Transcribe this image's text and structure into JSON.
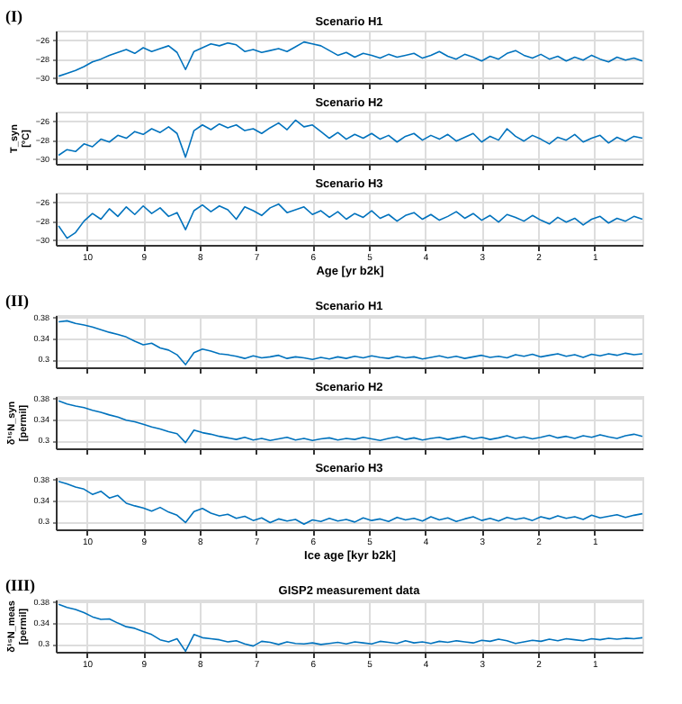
{
  "chart_data": [
    {
      "type": "line",
      "title": "Scenario H1",
      "annotations": [
        "(I)"
      ],
      "xlim": [
        10.55,
        0.15
      ],
      "xticks": [
        10,
        9,
        8,
        7,
        6,
        5,
        4,
        3,
        2,
        1
      ],
      "ylim": [
        -30.5,
        -25
      ],
      "yticks": [
        -26,
        -28,
        -30
      ],
      "grid": true,
      "tick_labels": "y",
      "x": [
        10.5,
        10.35,
        10.2,
        10.05,
        9.9,
        9.75,
        9.6,
        9.45,
        9.3,
        9.15,
        9.0,
        8.85,
        8.7,
        8.55,
        8.4,
        8.25,
        8.1,
        7.95,
        7.8,
        7.65,
        7.5,
        7.35,
        7.2,
        7.05,
        6.9,
        6.75,
        6.6,
        6.45,
        6.3,
        6.15,
        6.0,
        5.85,
        5.7,
        5.55,
        5.4,
        5.25,
        5.1,
        4.95,
        4.8,
        4.65,
        4.5,
        4.35,
        4.2,
        4.05,
        3.9,
        3.75,
        3.6,
        3.45,
        3.3,
        3.15,
        3.0,
        2.85,
        2.7,
        2.55,
        2.4,
        2.25,
        2.1,
        1.95,
        1.8,
        1.65,
        1.5,
        1.35,
        1.2,
        1.05,
        0.9,
        0.75,
        0.6,
        0.45,
        0.3,
        0.15
      ],
      "series": [
        {
          "color": "#0072bd",
          "values": [
            -29.8,
            -29.5,
            -29.2,
            -28.8,
            -28.3,
            -28.0,
            -27.6,
            -27.3,
            -27.0,
            -27.4,
            -26.8,
            -27.2,
            -26.9,
            -26.6,
            -27.3,
            -29.1,
            -27.2,
            -26.8,
            -26.4,
            -26.6,
            -26.3,
            -26.5,
            -27.2,
            -27.0,
            -27.3,
            -27.1,
            -26.9,
            -27.2,
            -26.7,
            -26.2,
            -26.4,
            -26.6,
            -27.1,
            -27.6,
            -27.3,
            -27.8,
            -27.4,
            -27.6,
            -27.9,
            -27.5,
            -27.8,
            -27.6,
            -27.4,
            -27.9,
            -27.6,
            -27.2,
            -27.7,
            -28.0,
            -27.5,
            -27.8,
            -28.2,
            -27.7,
            -28.0,
            -27.4,
            -27.1,
            -27.6,
            -27.9,
            -27.5,
            -28.0,
            -27.7,
            -28.2,
            -27.8,
            -28.1,
            -27.6,
            -28.0,
            -28.3,
            -27.8,
            -28.1,
            -27.9,
            -28.2
          ]
        }
      ]
    },
    {
      "type": "line",
      "title": "Scenario H2",
      "ylabel": "T_syn [°C]",
      "xlim": [
        10.55,
        0.15
      ],
      "xticks": [
        10,
        9,
        8,
        7,
        6,
        5,
        4,
        3,
        2,
        1
      ],
      "ylim": [
        -30.5,
        -25
      ],
      "yticks": [
        -26,
        -28,
        -30
      ],
      "grid": true,
      "tick_labels": "y",
      "x": [
        10.5,
        10.35,
        10.2,
        10.05,
        9.9,
        9.75,
        9.6,
        9.45,
        9.3,
        9.15,
        9.0,
        8.85,
        8.7,
        8.55,
        8.4,
        8.25,
        8.1,
        7.95,
        7.8,
        7.65,
        7.5,
        7.35,
        7.2,
        7.05,
        6.9,
        6.75,
        6.6,
        6.45,
        6.3,
        6.15,
        6.0,
        5.85,
        5.7,
        5.55,
        5.4,
        5.25,
        5.1,
        4.95,
        4.8,
        4.65,
        4.5,
        4.35,
        4.2,
        4.05,
        3.9,
        3.75,
        3.6,
        3.45,
        3.3,
        3.15,
        3.0,
        2.85,
        2.7,
        2.55,
        2.4,
        2.25,
        2.1,
        1.95,
        1.8,
        1.65,
        1.5,
        1.35,
        1.2,
        1.05,
        0.9,
        0.75,
        0.6,
        0.45,
        0.3,
        0.15
      ],
      "series": [
        {
          "color": "#0072bd",
          "values": [
            -29.6,
            -29.0,
            -29.2,
            -28.4,
            -28.7,
            -27.9,
            -28.2,
            -27.5,
            -27.8,
            -27.1,
            -27.4,
            -26.8,
            -27.2,
            -26.6,
            -27.3,
            -29.8,
            -27.0,
            -26.4,
            -26.9,
            -26.3,
            -26.7,
            -26.4,
            -27.0,
            -26.8,
            -27.3,
            -26.7,
            -26.2,
            -26.9,
            -25.9,
            -26.6,
            -26.4,
            -27.1,
            -27.8,
            -27.2,
            -27.9,
            -27.4,
            -27.8,
            -27.3,
            -27.9,
            -27.5,
            -28.2,
            -27.6,
            -27.3,
            -28.0,
            -27.5,
            -27.9,
            -27.4,
            -28.1,
            -27.7,
            -27.3,
            -28.2,
            -27.6,
            -28.0,
            -26.8,
            -27.6,
            -28.1,
            -27.5,
            -27.9,
            -28.4,
            -27.7,
            -28.0,
            -27.4,
            -28.2,
            -27.8,
            -27.5,
            -28.3,
            -27.7,
            -28.1,
            -27.6,
            -27.8
          ]
        }
      ]
    },
    {
      "type": "line",
      "title": "Scenario H3",
      "xlabel": "Age [yr b2k]",
      "xlim": [
        10.55,
        0.15
      ],
      "xticks": [
        10,
        9,
        8,
        7,
        6,
        5,
        4,
        3,
        2,
        1
      ],
      "ylim": [
        -30.5,
        -25
      ],
      "yticks": [
        -26,
        -28,
        -30
      ],
      "grid": true,
      "x": [
        10.5,
        10.35,
        10.2,
        10.05,
        9.9,
        9.75,
        9.6,
        9.45,
        9.3,
        9.15,
        9.0,
        8.85,
        8.7,
        8.55,
        8.4,
        8.25,
        8.1,
        7.95,
        7.8,
        7.65,
        7.5,
        7.35,
        7.2,
        7.05,
        6.9,
        6.75,
        6.6,
        6.45,
        6.3,
        6.15,
        6.0,
        5.85,
        5.7,
        5.55,
        5.4,
        5.25,
        5.1,
        4.95,
        4.8,
        4.65,
        4.5,
        4.35,
        4.2,
        4.05,
        3.9,
        3.75,
        3.6,
        3.45,
        3.3,
        3.15,
        3.0,
        2.85,
        2.7,
        2.55,
        2.4,
        2.25,
        2.1,
        1.95,
        1.8,
        1.65,
        1.5,
        1.35,
        1.2,
        1.05,
        0.9,
        0.75,
        0.6,
        0.45,
        0.3,
        0.15
      ],
      "series": [
        {
          "color": "#0072bd",
          "values": [
            -28.5,
            -29.8,
            -29.2,
            -28.0,
            -27.2,
            -27.8,
            -26.7,
            -27.5,
            -26.5,
            -27.3,
            -26.4,
            -27.2,
            -26.6,
            -27.5,
            -27.1,
            -28.9,
            -26.9,
            -26.3,
            -27.0,
            -26.4,
            -26.8,
            -27.8,
            -26.5,
            -26.9,
            -27.4,
            -26.6,
            -26.2,
            -27.1,
            -26.8,
            -26.5,
            -27.3,
            -26.9,
            -27.6,
            -27.0,
            -27.8,
            -27.2,
            -27.6,
            -26.9,
            -27.7,
            -27.3,
            -28.0,
            -27.4,
            -27.1,
            -27.8,
            -27.3,
            -27.9,
            -27.5,
            -27.0,
            -27.7,
            -27.2,
            -27.9,
            -27.4,
            -28.1,
            -27.3,
            -27.6,
            -28.0,
            -27.4,
            -27.9,
            -28.3,
            -27.6,
            -28.1,
            -27.7,
            -28.4,
            -27.8,
            -27.5,
            -28.2,
            -27.7,
            -28.0,
            -27.5,
            -27.8
          ]
        }
      ]
    },
    {
      "type": "line",
      "title": "Scenario H1",
      "annotations": [
        "(II)"
      ],
      "xlim": [
        10.55,
        0.15
      ],
      "xticks": [
        10,
        9,
        8,
        7,
        6,
        5,
        4,
        3,
        2,
        1
      ],
      "ylim": [
        0.285,
        0.385
      ],
      "yticks": [
        0.38,
        0.34,
        0.3
      ],
      "grid": true,
      "tick_labels": "y",
      "x": [
        10.5,
        10.35,
        10.2,
        10.05,
        9.9,
        9.75,
        9.6,
        9.45,
        9.3,
        9.15,
        9.0,
        8.85,
        8.7,
        8.55,
        8.4,
        8.25,
        8.1,
        7.95,
        7.8,
        7.65,
        7.5,
        7.35,
        7.2,
        7.05,
        6.9,
        6.75,
        6.6,
        6.45,
        6.3,
        6.15,
        6.0,
        5.85,
        5.7,
        5.55,
        5.4,
        5.25,
        5.1,
        4.95,
        4.8,
        4.65,
        4.5,
        4.35,
        4.2,
        4.05,
        3.9,
        3.75,
        3.6,
        3.45,
        3.3,
        3.15,
        3.0,
        2.85,
        2.7,
        2.55,
        2.4,
        2.25,
        2.1,
        1.95,
        1.8,
        1.65,
        1.5,
        1.35,
        1.2,
        1.05,
        0.9,
        0.75,
        0.6,
        0.45,
        0.3,
        0.15
      ],
      "series": [
        {
          "color": "#0072bd",
          "values": [
            0.372,
            0.374,
            0.369,
            0.366,
            0.362,
            0.357,
            0.352,
            0.348,
            0.343,
            0.335,
            0.328,
            0.331,
            0.322,
            0.318,
            0.309,
            0.29,
            0.313,
            0.32,
            0.316,
            0.311,
            0.309,
            0.306,
            0.302,
            0.307,
            0.303,
            0.305,
            0.308,
            0.302,
            0.305,
            0.303,
            0.3,
            0.304,
            0.301,
            0.305,
            0.302,
            0.306,
            0.303,
            0.307,
            0.304,
            0.302,
            0.306,
            0.303,
            0.305,
            0.301,
            0.304,
            0.307,
            0.303,
            0.306,
            0.302,
            0.305,
            0.308,
            0.304,
            0.306,
            0.303,
            0.309,
            0.306,
            0.31,
            0.305,
            0.308,
            0.311,
            0.306,
            0.309,
            0.304,
            0.31,
            0.307,
            0.311,
            0.308,
            0.312,
            0.309,
            0.311
          ]
        }
      ]
    },
    {
      "type": "line",
      "title": "Scenario H2",
      "ylabel": "δ¹⁵N_syn [permil]",
      "xlim": [
        10.55,
        0.15
      ],
      "xticks": [
        10,
        9,
        8,
        7,
        6,
        5,
        4,
        3,
        2,
        1
      ],
      "ylim": [
        0.285,
        0.385
      ],
      "yticks": [
        0.38,
        0.34,
        0.3
      ],
      "grid": true,
      "tick_labels": "y",
      "x": [
        10.5,
        10.35,
        10.2,
        10.05,
        9.9,
        9.75,
        9.6,
        9.45,
        9.3,
        9.15,
        9.0,
        8.85,
        8.7,
        8.55,
        8.4,
        8.25,
        8.1,
        7.95,
        7.8,
        7.65,
        7.5,
        7.35,
        7.2,
        7.05,
        6.9,
        6.75,
        6.6,
        6.45,
        6.3,
        6.15,
        6.0,
        5.85,
        5.7,
        5.55,
        5.4,
        5.25,
        5.1,
        4.95,
        4.8,
        4.65,
        4.5,
        4.35,
        4.2,
        4.05,
        3.9,
        3.75,
        3.6,
        3.45,
        3.3,
        3.15,
        3.0,
        2.85,
        2.7,
        2.55,
        2.4,
        2.25,
        2.1,
        1.95,
        1.8,
        1.65,
        1.5,
        1.35,
        1.2,
        1.05,
        0.9,
        0.75,
        0.6,
        0.45,
        0.3,
        0.15
      ],
      "series": [
        {
          "color": "#0072bd",
          "values": [
            0.376,
            0.37,
            0.366,
            0.363,
            0.358,
            0.354,
            0.349,
            0.345,
            0.339,
            0.336,
            0.331,
            0.326,
            0.322,
            0.317,
            0.313,
            0.296,
            0.32,
            0.315,
            0.312,
            0.308,
            0.305,
            0.302,
            0.306,
            0.301,
            0.304,
            0.3,
            0.303,
            0.306,
            0.301,
            0.304,
            0.3,
            0.303,
            0.305,
            0.301,
            0.304,
            0.302,
            0.306,
            0.303,
            0.3,
            0.304,
            0.307,
            0.302,
            0.305,
            0.301,
            0.304,
            0.306,
            0.302,
            0.305,
            0.308,
            0.303,
            0.306,
            0.302,
            0.305,
            0.309,
            0.304,
            0.307,
            0.303,
            0.306,
            0.31,
            0.305,
            0.308,
            0.304,
            0.309,
            0.306,
            0.311,
            0.307,
            0.304,
            0.309,
            0.312,
            0.308
          ]
        }
      ]
    },
    {
      "type": "line",
      "title": "Scenario H3",
      "xlabel": "Ice age [kyr b2k]",
      "xlim": [
        10.55,
        0.15
      ],
      "xticks": [
        10,
        9,
        8,
        7,
        6,
        5,
        4,
        3,
        2,
        1
      ],
      "ylim": [
        0.285,
        0.385
      ],
      "yticks": [
        0.38,
        0.34,
        0.3
      ],
      "grid": true,
      "x": [
        10.5,
        10.35,
        10.2,
        10.05,
        9.9,
        9.75,
        9.6,
        9.45,
        9.3,
        9.15,
        9.0,
        8.85,
        8.7,
        8.55,
        8.4,
        8.25,
        8.1,
        7.95,
        7.8,
        7.65,
        7.5,
        7.35,
        7.2,
        7.05,
        6.9,
        6.75,
        6.6,
        6.45,
        6.3,
        6.15,
        6.0,
        5.85,
        5.7,
        5.55,
        5.4,
        5.25,
        5.1,
        4.95,
        4.8,
        4.65,
        4.5,
        4.35,
        4.2,
        4.05,
        3.9,
        3.75,
        3.6,
        3.45,
        3.3,
        3.15,
        3.0,
        2.85,
        2.7,
        2.55,
        2.4,
        2.25,
        2.1,
        1.95,
        1.8,
        1.65,
        1.5,
        1.35,
        1.2,
        1.05,
        0.9,
        0.75,
        0.6,
        0.45,
        0.3,
        0.15
      ],
      "series": [
        {
          "color": "#0072bd",
          "values": [
            0.377,
            0.372,
            0.366,
            0.362,
            0.352,
            0.358,
            0.345,
            0.35,
            0.335,
            0.33,
            0.326,
            0.32,
            0.327,
            0.318,
            0.312,
            0.298,
            0.319,
            0.325,
            0.316,
            0.311,
            0.314,
            0.306,
            0.31,
            0.302,
            0.307,
            0.298,
            0.305,
            0.301,
            0.304,
            0.295,
            0.303,
            0.3,
            0.306,
            0.301,
            0.304,
            0.299,
            0.307,
            0.302,
            0.305,
            0.3,
            0.308,
            0.303,
            0.306,
            0.301,
            0.309,
            0.303,
            0.307,
            0.3,
            0.305,
            0.309,
            0.302,
            0.306,
            0.301,
            0.308,
            0.304,
            0.307,
            0.302,
            0.309,
            0.305,
            0.311,
            0.306,
            0.309,
            0.304,
            0.312,
            0.307,
            0.31,
            0.313,
            0.308,
            0.312,
            0.315
          ]
        }
      ]
    },
    {
      "type": "line",
      "title": "GISP2 measurement data",
      "ylabel": "δ¹⁵N_meas [permil]",
      "annotations": [
        "(III)"
      ],
      "xlim": [
        10.55,
        0.15
      ],
      "xticks": [
        10,
        9,
        8,
        7,
        6,
        5,
        4,
        3,
        2,
        1
      ],
      "ylim": [
        0.285,
        0.385
      ],
      "yticks": [
        0.38,
        0.34,
        0.3
      ],
      "grid": true,
      "x": [
        10.5,
        10.35,
        10.2,
        10.05,
        9.9,
        9.75,
        9.6,
        9.45,
        9.3,
        9.15,
        9.0,
        8.85,
        8.7,
        8.55,
        8.4,
        8.25,
        8.1,
        7.95,
        7.8,
        7.65,
        7.5,
        7.35,
        7.2,
        7.05,
        6.9,
        6.75,
        6.6,
        6.45,
        6.3,
        6.15,
        6.0,
        5.85,
        5.7,
        5.55,
        5.4,
        5.25,
        5.1,
        4.95,
        4.8,
        4.65,
        4.5,
        4.35,
        4.2,
        4.05,
        3.9,
        3.75,
        3.6,
        3.45,
        3.3,
        3.15,
        3.0,
        2.85,
        2.7,
        2.55,
        2.4,
        2.25,
        2.1,
        1.95,
        1.8,
        1.65,
        1.5,
        1.35,
        1.2,
        1.05,
        0.9,
        0.75,
        0.6,
        0.45,
        0.3,
        0.15
      ],
      "series": [
        {
          "color": "#0072bd",
          "values": [
            0.376,
            0.37,
            0.366,
            0.36,
            0.352,
            0.347,
            0.348,
            0.34,
            0.333,
            0.33,
            0.324,
            0.318,
            0.308,
            0.304,
            0.31,
            0.286,
            0.318,
            0.312,
            0.31,
            0.308,
            0.304,
            0.306,
            0.3,
            0.296,
            0.305,
            0.303,
            0.299,
            0.304,
            0.301,
            0.3,
            0.302,
            0.299,
            0.301,
            0.303,
            0.3,
            0.304,
            0.302,
            0.3,
            0.305,
            0.303,
            0.301,
            0.306,
            0.302,
            0.304,
            0.301,
            0.305,
            0.303,
            0.306,
            0.304,
            0.302,
            0.307,
            0.305,
            0.309,
            0.306,
            0.301,
            0.304,
            0.307,
            0.305,
            0.309,
            0.306,
            0.31,
            0.308,
            0.306,
            0.31,
            0.308,
            0.311,
            0.309,
            0.311,
            0.31,
            0.312
          ]
        }
      ]
    }
  ]
}
